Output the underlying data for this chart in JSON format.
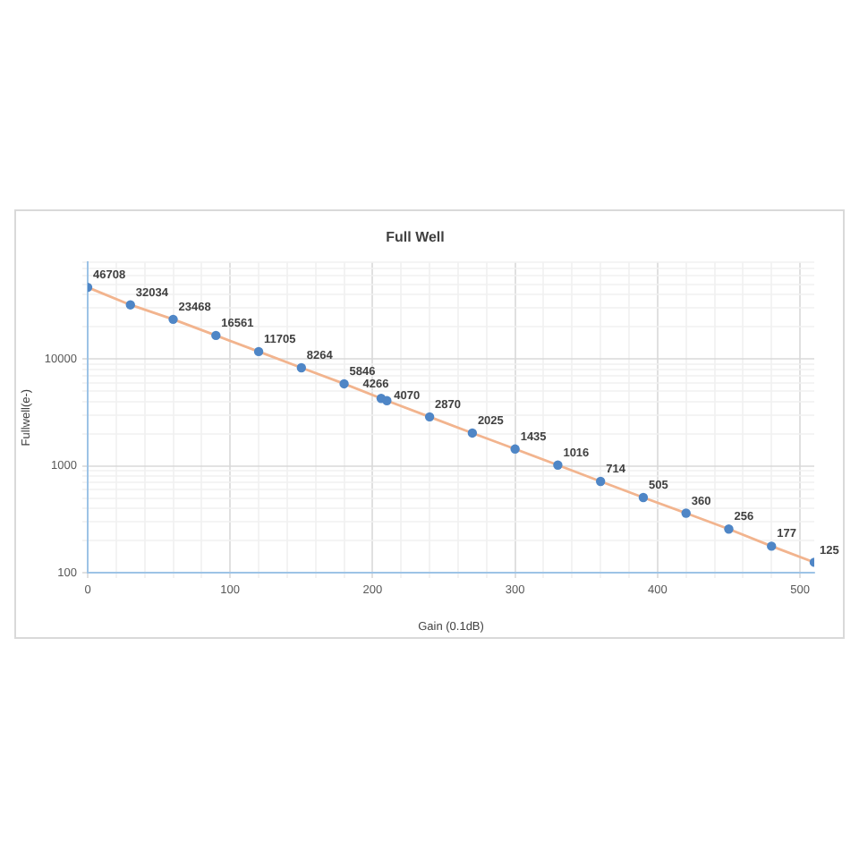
{
  "chart_data": {
    "type": "line",
    "title": "Full Well",
    "xlabel": "Gain (0.1dB)",
    "ylabel": "Fullwell(e-)",
    "x": [
      0,
      30,
      60,
      90,
      120,
      150,
      180,
      206,
      210,
      240,
      270,
      300,
      330,
      360,
      390,
      420,
      450,
      480,
      510
    ],
    "series": [
      {
        "color": "#f2b48e",
        "colors": [
          "#4f86c6",
          "#4f86c6",
          "#4f86c6",
          "#4f86c6",
          "#4f86c6",
          "#4f86c6",
          "#4f86c6",
          "#4f86c6",
          "#4f86c6",
          "#4f86c6",
          "#4f86c6",
          "#4f86c6",
          "#4f86c6",
          "#4f86c6",
          "#4f86c6",
          "#4f86c6",
          "#4f86c6",
          "#4f86c6",
          "#4f86c6"
        ],
        "values": [
          46708,
          32034,
          23468,
          16561,
          11705,
          8264,
          5846,
          4266,
          4070,
          2870,
          2025,
          1435,
          1016,
          714,
          505,
          360,
          256,
          177,
          125
        ]
      }
    ],
    "xlim": [
      0,
      510
    ],
    "xticks": [
      0,
      {
        "value": 20,
        "label": null
      },
      {
        "value": 40,
        "label": null
      },
      {
        "value": 60,
        "label": null
      },
      {
        "value": 80,
        "label": null
      },
      100,
      {
        "value": 120,
        "label": null
      },
      {
        "value": 140,
        "label": null
      },
      {
        "value": 160,
        "label": null
      },
      {
        "value": 180,
        "label": null
      },
      200,
      {
        "value": 220,
        "label": null
      },
      {
        "value": 240,
        "label": null
      },
      {
        "value": 260,
        "label": null
      },
      {
        "value": 280,
        "label": null
      },
      300,
      {
        "value": 320,
        "label": null
      },
      {
        "value": 340,
        "label": null
      },
      {
        "value": 360,
        "label": null
      },
      {
        "value": 380,
        "label": null
      },
      400,
      {
        "value": 420,
        "label": null
      },
      {
        "value": 440,
        "label": null
      },
      {
        "value": 460,
        "label": null
      },
      {
        "value": 480,
        "label": null
      },
      500
    ],
    "ylim": [
      100,
      80000
    ],
    "yticks": [
      100,
      {
        "value": 200,
        "label": null
      },
      {
        "value": 300,
        "label": null
      },
      {
        "value": 400,
        "label": null
      },
      {
        "value": 500,
        "label": null
      },
      {
        "value": 600,
        "label": null
      },
      {
        "value": 700,
        "label": null
      },
      {
        "value": 800,
        "label": null
      },
      {
        "value": 900,
        "label": null
      },
      1000,
      {
        "value": 2000,
        "label": null
      },
      {
        "value": 3000,
        "label": null
      },
      {
        "value": 4000,
        "label": null
      },
      {
        "value": 5000,
        "label": null
      },
      {
        "value": 6000,
        "label": null
      },
      {
        "value": 7000,
        "label": null
      },
      {
        "value": 8000,
        "label": null
      },
      {
        "value": 9000,
        "label": null
      },
      10000,
      {
        "value": 20000,
        "label": null
      },
      {
        "value": 30000,
        "label": null
      },
      {
        "value": 40000,
        "label": null
      },
      {
        "value": 50000,
        "label": null
      },
      {
        "value": 60000,
        "label": null
      },
      {
        "value": 70000,
        "label": null
      },
      {
        "value": 80000,
        "label": null
      }
    ],
    "log": "y",
    "grid": true,
    "marker": "circle",
    "data_labels": true
  }
}
